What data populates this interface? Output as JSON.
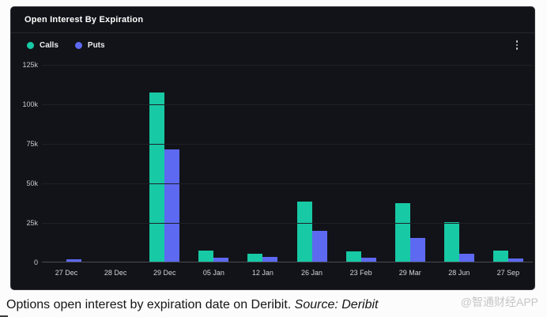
{
  "panel": {
    "title": "Open Interest By Expiration",
    "menu_icon": "kebab-menu"
  },
  "legend": {
    "items": [
      {
        "label": "Calls",
        "color": "#18c9a5"
      },
      {
        "label": "Puts",
        "color": "#5c69f0"
      }
    ]
  },
  "chart_data": {
    "type": "bar",
    "title": "Open Interest By Expiration",
    "categories": [
      "27 Dec",
      "28 Dec",
      "29 Dec",
      "05 Jan",
      "12 Jan",
      "26 Jan",
      "23 Feb",
      "29 Mar",
      "28 Jun",
      "27 Sep"
    ],
    "series": [
      {
        "name": "Calls",
        "color": "#18c9a5",
        "values": [
          0,
          0,
          107000,
          7000,
          5000,
          38000,
          6500,
          37000,
          25000,
          7000
        ]
      },
      {
        "name": "Puts",
        "color": "#5c69f0",
        "values": [
          1500,
          0,
          71000,
          2500,
          3000,
          19500,
          2500,
          15000,
          5000,
          2000
        ]
      }
    ],
    "ylim": [
      0,
      125000
    ],
    "yticks": [
      {
        "value": 125000,
        "label": "125k"
      },
      {
        "value": 100000,
        "label": "100k"
      },
      {
        "value": 75000,
        "label": "75k"
      },
      {
        "value": 50000,
        "label": "50k"
      },
      {
        "value": 25000,
        "label": "25k"
      },
      {
        "value": 0,
        "label": "0"
      }
    ],
    "grid": "horizontal",
    "legend_position": "top-left"
  },
  "caption": {
    "text": "Options open interest by expiration date on Deribit. ",
    "source": "Source: Deribit"
  },
  "watermark": "@智通财经APP"
}
